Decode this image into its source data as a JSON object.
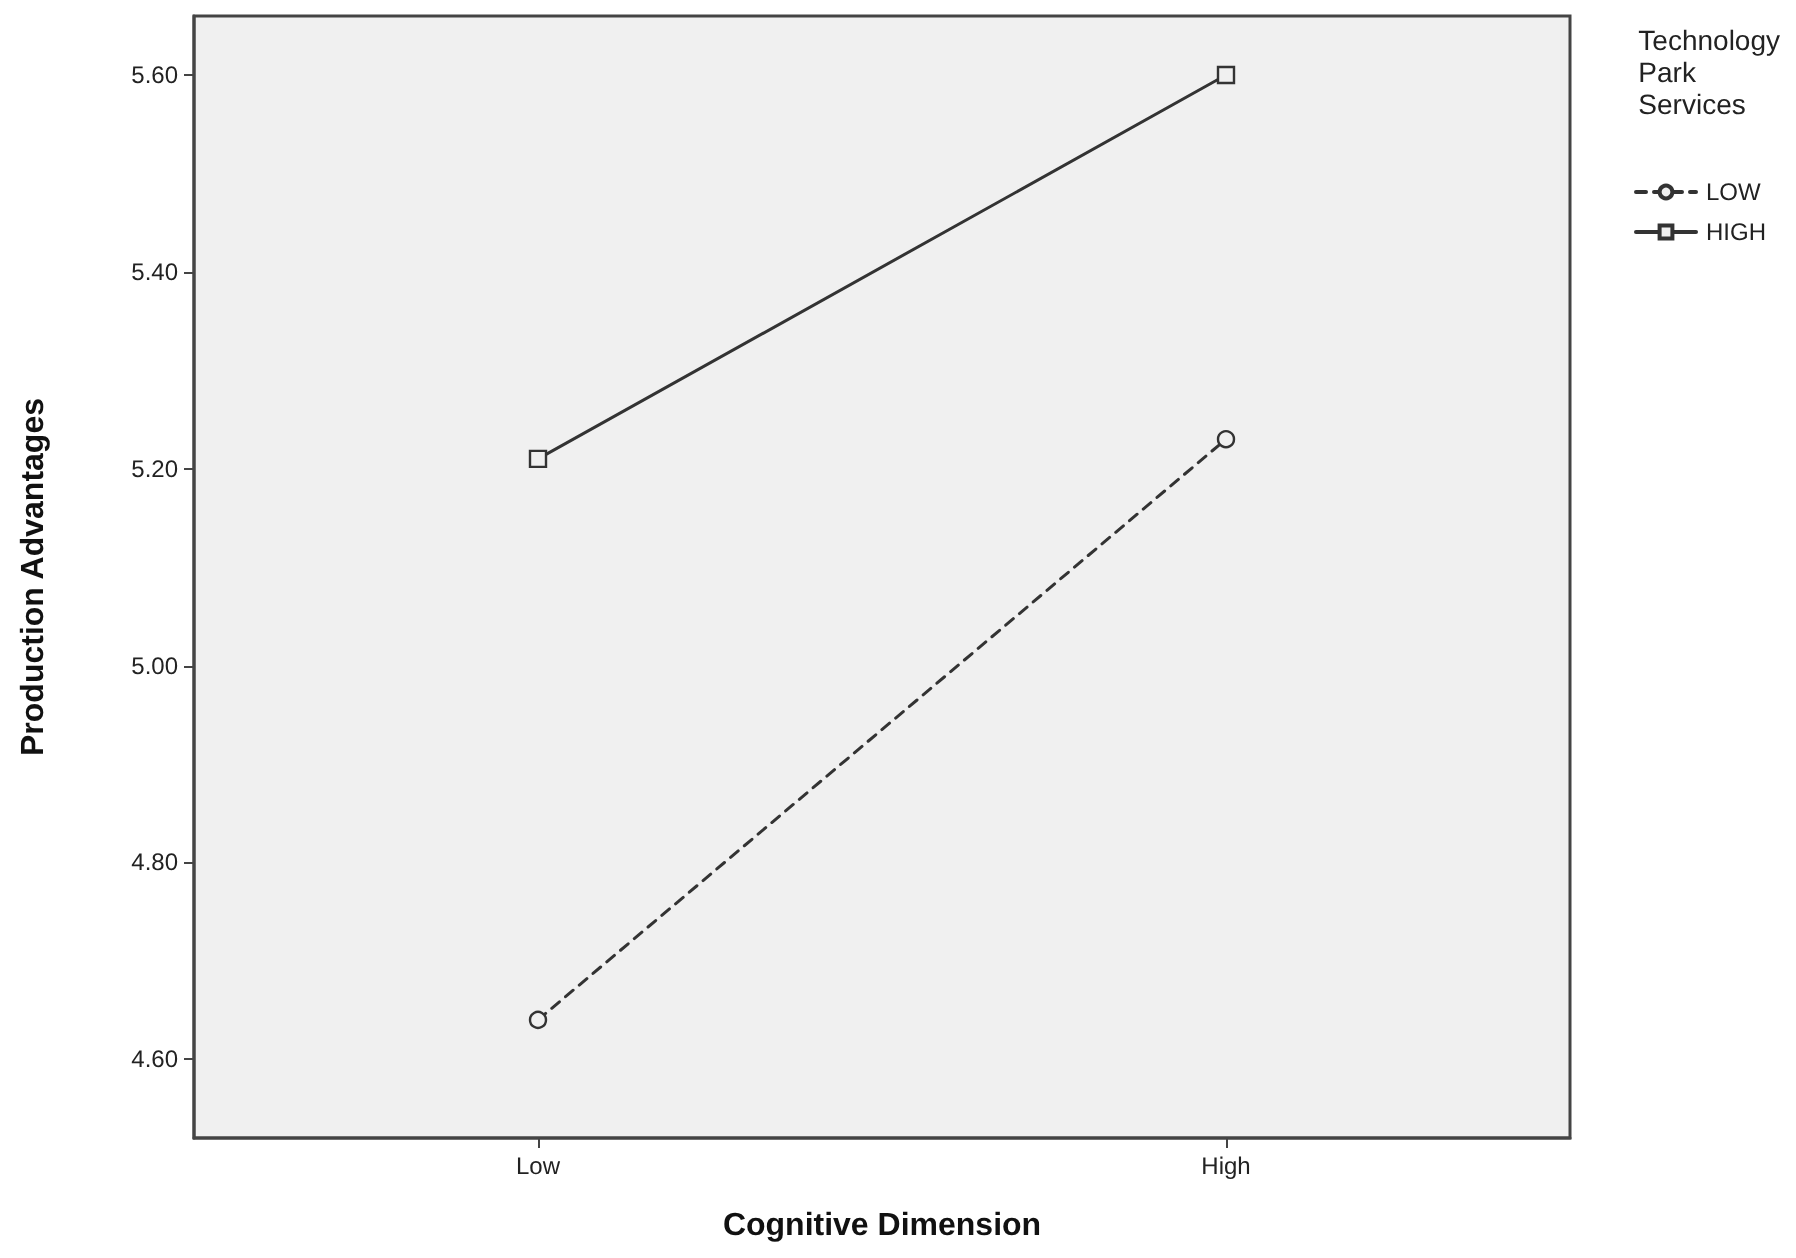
{
  "chart_data": {
    "type": "line",
    "xlabel": "Cognitive Dimension",
    "ylabel": "Production Advantages",
    "legend_title": "Technology Park Services",
    "categories": [
      "Low",
      "High"
    ],
    "series": [
      {
        "name": "LOW",
        "color": "#333333",
        "values": [
          4.64,
          5.23
        ],
        "line_style": "dashed",
        "marker": "circle"
      },
      {
        "name": "HIGH",
        "color": "#333333",
        "values": [
          5.21,
          5.6
        ],
        "line_style": "solid",
        "marker": "square"
      }
    ],
    "ylim": [
      4.52,
      5.66
    ],
    "yticks": [
      {
        "value": 4.6,
        "label": "4.60"
      },
      {
        "value": 4.8,
        "label": "4.80"
      },
      {
        "value": 5.0,
        "label": "5.00"
      },
      {
        "value": 5.2,
        "label": "5.20"
      },
      {
        "value": 5.4,
        "label": "5.40"
      },
      {
        "value": 5.6,
        "label": "5.60"
      }
    ],
    "grid": false,
    "legend": "top right"
  }
}
